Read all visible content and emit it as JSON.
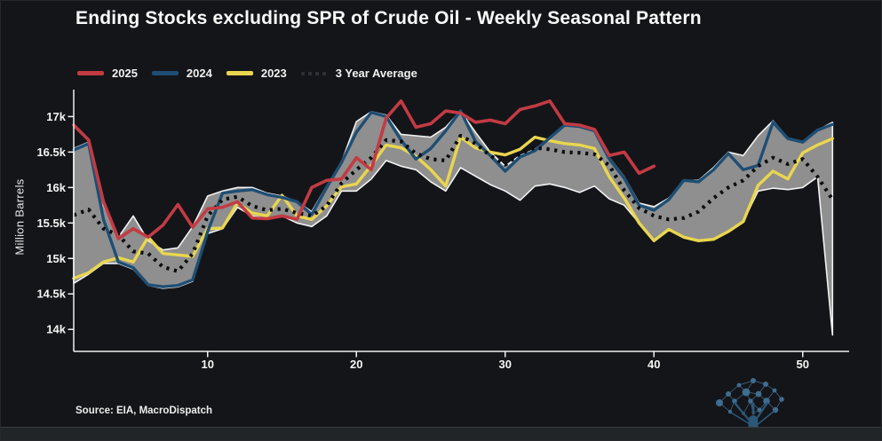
{
  "header": {
    "title": "Ending Stocks excluding SPR of Crude Oil - Weekly Seasonal Pattern"
  },
  "legend": {
    "items": [
      {
        "label": "2025"
      },
      {
        "label": "2024"
      },
      {
        "label": "2023"
      },
      {
        "label": "3 Year Average"
      }
    ]
  },
  "footer": {
    "source": "Source: EIA, MacroDispatch"
  },
  "logo": {
    "icon": "network-tree-logo"
  },
  "chart_data": {
    "type": "line",
    "title": "Ending Stocks excluding SPR of Crude Oil - Weekly Seasonal Pattern",
    "xlabel": "",
    "ylabel": "Million Barrels",
    "x_unit": "week of year",
    "xlim": [
      1,
      52
    ],
    "ylim_k": [
      13.69,
      17.38
    ],
    "grid": false,
    "legend_position": "top-left",
    "x_ticks": [
      {
        "v": 10,
        "label": "10"
      },
      {
        "v": 20,
        "label": "20"
      },
      {
        "v": 30,
        "label": "30"
      },
      {
        "v": 40,
        "label": "40"
      },
      {
        "v": 50,
        "label": "50"
      }
    ],
    "y_ticks": [
      {
        "v": 17,
        "label": "17k"
      },
      {
        "v": 16.5,
        "label": "16.5k"
      },
      {
        "v": 16,
        "label": "16k"
      },
      {
        "v": 15.5,
        "label": "15.5k"
      },
      {
        "v": 15,
        "label": "15k"
      },
      {
        "v": 14.5,
        "label": "14.5k"
      },
      {
        "v": 14,
        "label": "14k"
      }
    ],
    "band": {
      "name": "3-year min-max range",
      "fill": "#8f8f8f",
      "outline": "#f2f2f2",
      "start_week": 1,
      "upper": [
        16.55,
        16.64,
        15.75,
        15.3,
        15.6,
        15.25,
        15.12,
        15.15,
        15.45,
        15.88,
        15.95,
        16.0,
        16.0,
        15.92,
        15.88,
        15.8,
        15.66,
        16.02,
        16.36,
        16.93,
        17.07,
        17.02,
        16.75,
        16.73,
        16.71,
        16.85,
        17.08,
        16.78,
        16.5,
        16.3,
        16.45,
        16.54,
        16.7,
        16.88,
        16.86,
        16.8,
        16.42,
        16.15,
        15.78,
        15.73,
        15.85,
        16.1,
        16.1,
        16.28,
        16.5,
        16.45,
        16.73,
        16.94,
        16.7,
        16.65,
        16.81,
        16.92
      ],
      "lower": [
        14.65,
        14.78,
        14.93,
        14.93,
        14.85,
        14.62,
        14.58,
        14.6,
        14.68,
        15.35,
        15.42,
        15.72,
        15.6,
        15.56,
        15.6,
        15.5,
        15.45,
        15.6,
        15.95,
        15.95,
        16.12,
        16.38,
        16.3,
        16.25,
        16.08,
        15.95,
        16.28,
        16.16,
        16.04,
        15.95,
        15.82,
        16.02,
        16.05,
        16.0,
        15.93,
        16.02,
        15.84,
        15.75,
        15.5,
        15.25,
        15.4,
        15.3,
        15.25,
        15.27,
        15.38,
        15.52,
        15.95,
        15.99,
        15.97,
        16.0,
        16.15,
        13.92
      ]
    },
    "series": [
      {
        "name": "2023",
        "color": "#e9d64f",
        "style": "solid",
        "start_week": 1,
        "values": [
          14.72,
          14.8,
          14.95,
          15.01,
          14.95,
          15.3,
          15.07,
          15.05,
          15.03,
          15.42,
          15.43,
          15.78,
          15.64,
          15.6,
          15.89,
          15.6,
          15.55,
          15.74,
          16.01,
          16.05,
          16.31,
          16.6,
          16.56,
          16.44,
          16.25,
          16.02,
          16.71,
          16.56,
          16.5,
          16.46,
          16.54,
          16.71,
          16.66,
          16.62,
          16.6,
          16.55,
          16.15,
          15.85,
          15.5,
          15.25,
          15.41,
          15.3,
          15.25,
          15.27,
          15.38,
          15.52,
          16.03,
          16.23,
          16.12,
          16.49,
          16.6,
          16.69
        ]
      },
      {
        "name": "2024",
        "color": "#1e4e74",
        "style": "solid",
        "start_week": 1,
        "values": [
          16.53,
          16.62,
          15.55,
          14.95,
          14.87,
          14.63,
          14.6,
          14.62,
          14.7,
          15.38,
          15.92,
          15.95,
          15.97,
          15.9,
          15.86,
          15.8,
          15.62,
          16.0,
          16.35,
          16.78,
          17.06,
          17.0,
          16.67,
          16.4,
          16.55,
          16.8,
          17.08,
          16.65,
          16.45,
          16.23,
          16.43,
          16.52,
          16.7,
          16.88,
          16.86,
          16.8,
          16.4,
          16.13,
          15.75,
          15.68,
          15.83,
          16.1,
          16.08,
          16.25,
          16.48,
          16.25,
          16.31,
          16.92,
          16.69,
          16.64,
          16.81,
          16.89
        ]
      },
      {
        "name": "3 Year Average",
        "color": "#0c0d0f",
        "style": "dotted",
        "start_week": 1,
        "values": [
          15.61,
          15.69,
          15.42,
          15.33,
          15.1,
          15.07,
          14.88,
          14.82,
          15.07,
          15.6,
          15.83,
          15.87,
          15.74,
          15.68,
          15.7,
          15.64,
          15.6,
          15.74,
          16.06,
          16.25,
          16.42,
          16.67,
          16.65,
          16.48,
          16.4,
          16.38,
          16.73,
          16.62,
          16.45,
          16.32,
          16.48,
          16.56,
          16.54,
          16.5,
          16.49,
          16.47,
          16.31,
          15.96,
          15.71,
          15.6,
          15.55,
          15.57,
          15.66,
          15.85,
          16.0,
          16.1,
          16.3,
          16.42,
          16.33,
          16.4,
          16.15,
          15.83
        ]
      },
      {
        "name": "2025",
        "color": "#c23b43",
        "style": "solid",
        "start_week": 1,
        "values": [
          16.88,
          16.67,
          15.8,
          15.28,
          15.42,
          15.3,
          15.47,
          15.76,
          15.44,
          15.7,
          15.72,
          15.8,
          15.57,
          15.56,
          15.6,
          15.55,
          16.0,
          16.1,
          16.12,
          16.42,
          16.25,
          16.98,
          17.22,
          16.85,
          16.9,
          17.08,
          17.05,
          16.92,
          16.95,
          16.9,
          17.1,
          17.15,
          17.22,
          16.9,
          16.88,
          16.82,
          16.45,
          16.5,
          16.2,
          16.3
        ]
      }
    ]
  }
}
